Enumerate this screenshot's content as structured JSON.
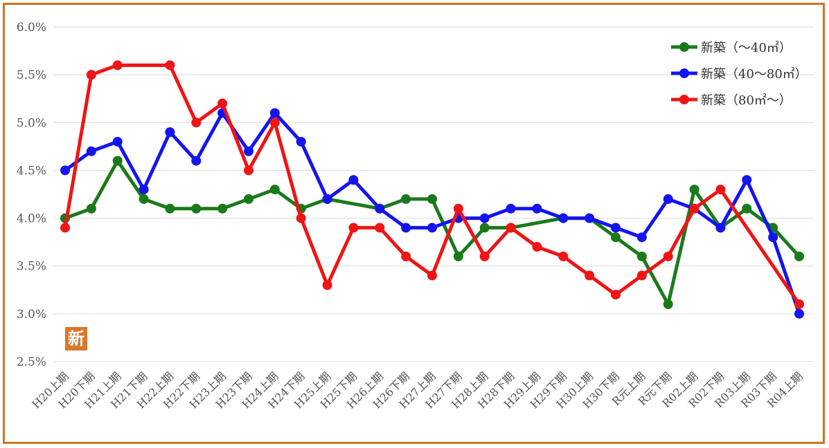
{
  "badge": {
    "label": "新",
    "color": "#d9772b"
  },
  "frame_color": "#c9761f",
  "chart_data": {
    "type": "line",
    "title": "",
    "xlabel": "",
    "ylabel": "",
    "ylim": [
      0.025,
      0.06
    ],
    "yticks": [
      0.025,
      0.03,
      0.035,
      0.04,
      0.045,
      0.05,
      0.055,
      0.06
    ],
    "ytick_labels": [
      "2.5%",
      "3.0%",
      "3.5%",
      "4.0%",
      "4.5%",
      "5.0%",
      "5.5%",
      "6.0%"
    ],
    "grid": "horizontal",
    "legend": "top-right",
    "categories": [
      "H20上期",
      "H20下期",
      "H21上期",
      "H21下期",
      "H22上期",
      "H22下期",
      "H23上期",
      "H23下期",
      "H24上期",
      "H24下期",
      "H25上期",
      "H25下期",
      "H26上期",
      "H26下期",
      "H27上期",
      "H27下期",
      "H28上期",
      "H28下期",
      "H29上期",
      "H29下期",
      "H30上期",
      "H30下期",
      "R元上期",
      "R元下期",
      "R02上期",
      "R02下期",
      "R03上期",
      "R03下期",
      "R04上期"
    ],
    "series": [
      {
        "name": "新築（～40㎡）",
        "color": "#1a7a1a",
        "values": [
          0.04,
          0.041,
          0.046,
          0.042,
          0.041,
          0.041,
          0.041,
          0.042,
          0.043,
          0.041,
          0.042,
          null,
          0.041,
          0.042,
          0.042,
          0.036,
          0.039,
          0.039,
          null,
          0.04,
          0.04,
          0.038,
          0.036,
          0.031,
          0.043,
          0.039,
          0.041,
          0.039,
          0.036
        ]
      },
      {
        "name": "新築（40～80㎡）",
        "color": "#1414f0",
        "values": [
          0.045,
          0.047,
          0.048,
          0.043,
          0.049,
          0.046,
          0.051,
          0.047,
          0.051,
          0.048,
          0.042,
          0.044,
          0.041,
          0.039,
          0.039,
          0.04,
          0.04,
          0.041,
          0.041,
          0.04,
          0.04,
          0.039,
          0.038,
          0.042,
          0.041,
          0.039,
          0.044,
          0.038,
          0.03
        ]
      },
      {
        "name": "新築（80㎡～）",
        "color": "#f01414",
        "values": [
          0.039,
          0.055,
          0.056,
          null,
          0.056,
          0.05,
          0.052,
          0.045,
          0.05,
          0.04,
          0.033,
          0.039,
          0.039,
          0.036,
          0.034,
          0.041,
          0.036,
          0.039,
          0.037,
          0.036,
          0.034,
          0.032,
          0.034,
          0.036,
          0.041,
          0.043,
          null,
          null,
          0.031
        ]
      }
    ]
  }
}
